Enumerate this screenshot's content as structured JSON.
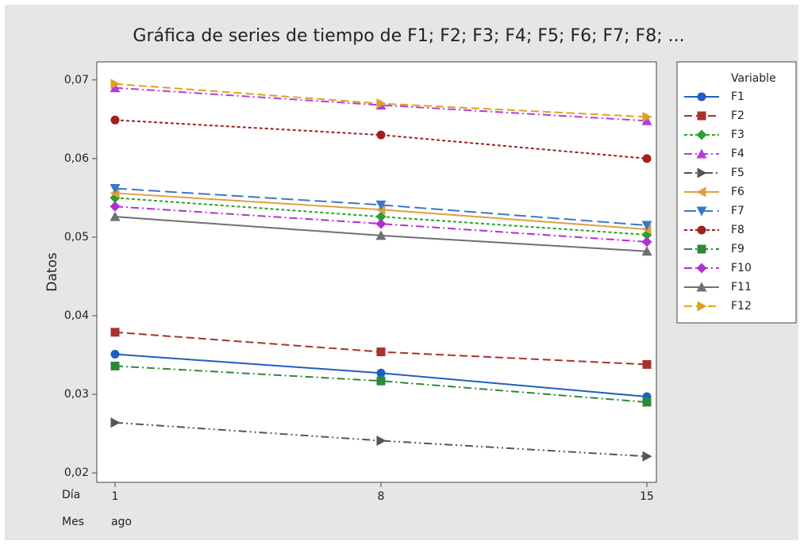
{
  "chart_data": {
    "type": "line",
    "title": "Gráfica de series de tiempo de F1; F2; F3; F4; F5; F6; F7; F8; ...",
    "ylabel": "Datos",
    "x_row_labels": [
      "Día",
      "Mes"
    ],
    "x": [
      1,
      8,
      15
    ],
    "xticks": [
      1,
      8,
      15
    ],
    "month_labels": [
      "ago",
      null,
      null
    ],
    "xlim": [
      0.52,
      15.25
    ],
    "ylim": [
      0.0188,
      0.0723
    ],
    "yticks": [
      {
        "value": 0.02,
        "label": "0,02"
      },
      {
        "value": 0.03,
        "label": "0,03"
      },
      {
        "value": 0.04,
        "label": "0,04"
      },
      {
        "value": 0.05,
        "label": "0,05"
      },
      {
        "value": 0.06,
        "label": "0,06"
      },
      {
        "value": 0.07,
        "label": "0,07"
      }
    ],
    "legend_title": "Variable",
    "legend_position": "right",
    "series": [
      {
        "name": "F1",
        "color": "#1f5fbf",
        "marker": "circle",
        "linestyle": "solid",
        "values": [
          0.0351,
          0.0327,
          0.0297
        ]
      },
      {
        "name": "F2",
        "color": "#a8322d",
        "marker": "square",
        "linestyle": "dashed",
        "values": [
          0.0379,
          0.0354,
          0.0338
        ]
      },
      {
        "name": "F3",
        "color": "#2ca02c",
        "marker": "diamond",
        "linestyle": "dotted",
        "values": [
          0.055,
          0.0526,
          0.0503
        ]
      },
      {
        "name": "F4",
        "color": "#b43ed8",
        "marker": "triangle-up",
        "linestyle": "dashdot",
        "values": [
          0.069,
          0.0668,
          0.0648
        ]
      },
      {
        "name": "F5",
        "color": "#555555",
        "marker": "triangle-right",
        "linestyle": "dashdotdot",
        "values": [
          0.0264,
          0.0241,
          0.0221
        ]
      },
      {
        "name": "F6",
        "color": "#e0a040",
        "marker": "triangle-left",
        "linestyle": "solid",
        "values": [
          0.0556,
          0.0535,
          0.051
        ]
      },
      {
        "name": "F7",
        "color": "#3a78c9",
        "marker": "triangle-down",
        "linestyle": "longdash",
        "values": [
          0.0562,
          0.0541,
          0.0515
        ]
      },
      {
        "name": "F8",
        "color": "#a02020",
        "marker": "circle",
        "linestyle": "dotted",
        "values": [
          0.0649,
          0.063,
          0.06
        ]
      },
      {
        "name": "F9",
        "color": "#2a8a3a",
        "marker": "square",
        "linestyle": "dashdot",
        "values": [
          0.0336,
          0.0317,
          0.029
        ]
      },
      {
        "name": "F10",
        "color": "#b030d0",
        "marker": "diamond",
        "linestyle": "dashdot",
        "values": [
          0.0539,
          0.0517,
          0.0494
        ]
      },
      {
        "name": "F11",
        "color": "#707070",
        "marker": "triangle-up",
        "linestyle": "solid",
        "values": [
          0.0526,
          0.0502,
          0.0482
        ]
      },
      {
        "name": "F12",
        "color": "#e0a020",
        "marker": "triangle-right",
        "linestyle": "dashed",
        "values": [
          0.0695,
          0.067,
          0.0653
        ]
      }
    ]
  }
}
